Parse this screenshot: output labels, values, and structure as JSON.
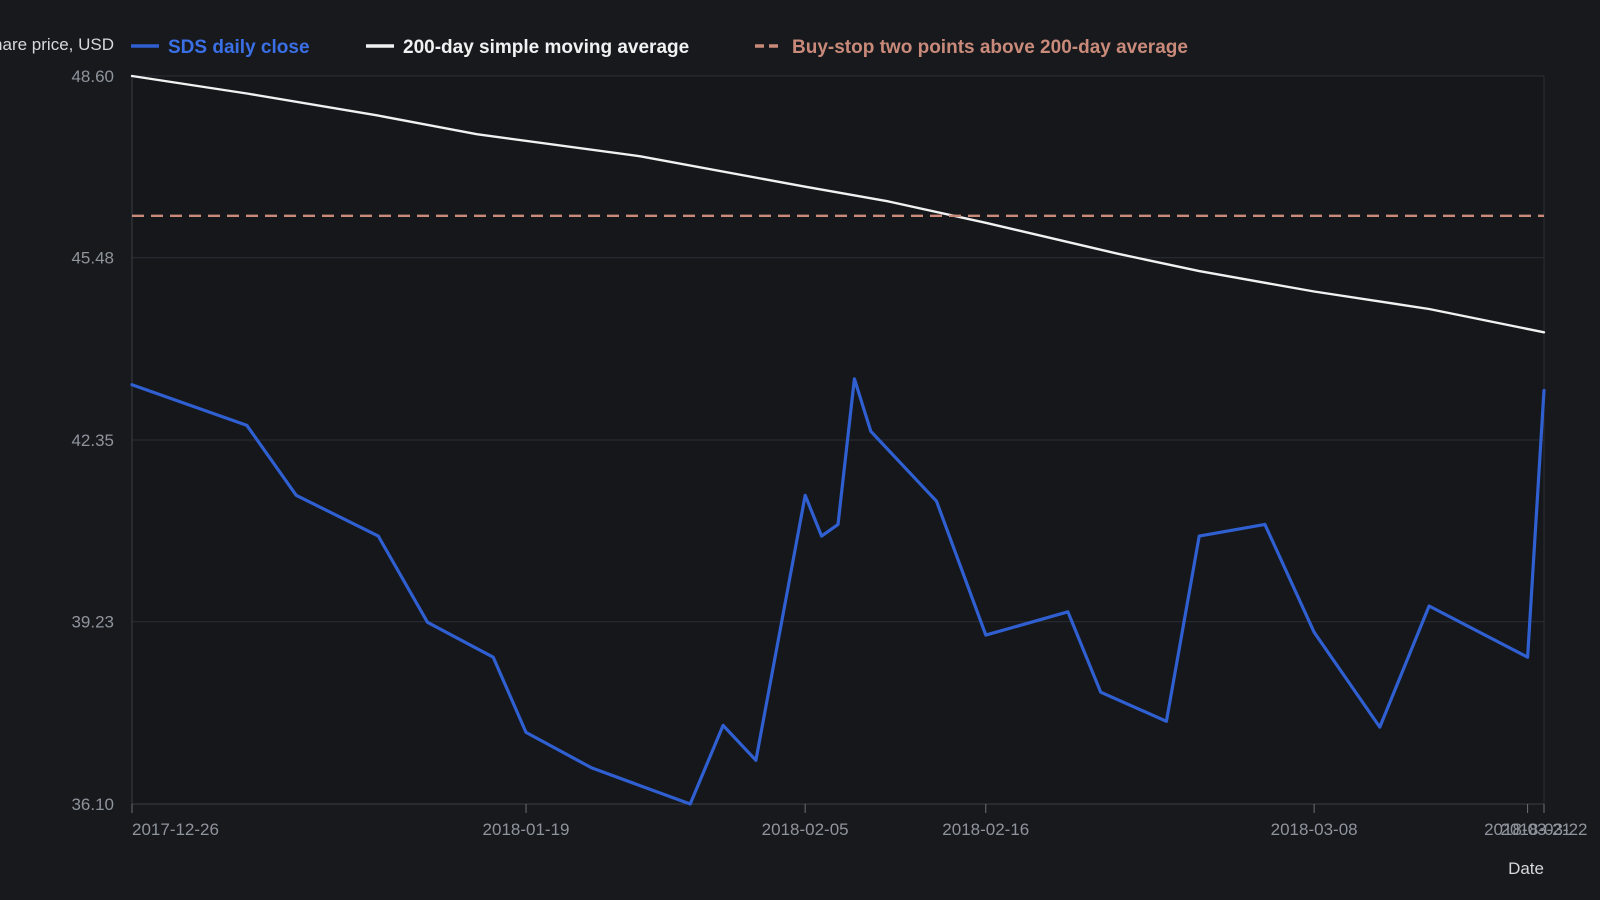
{
  "chart_data": {
    "type": "line",
    "ylabel": "Share price, USD",
    "xlabel": "Date",
    "ylim": [
      36.1,
      48.6
    ],
    "yticks": [
      "36.10",
      "39.23",
      "42.35",
      "45.48",
      "48.60"
    ],
    "xlim": [
      "2017-12-26",
      "2018-03-22"
    ],
    "xticks": [
      {
        "date": "2017-12-26",
        "label": "2017-12-26"
      },
      {
        "date": "2018-01-19",
        "label": "2018-01-19"
      },
      {
        "date": "2018-02-05",
        "label": "2018-02-05"
      },
      {
        "date": "2018-02-16",
        "label": "2018-02-16"
      },
      {
        "date": "2018-03-08",
        "label": "2018-03-08"
      },
      {
        "date": "2018-03-21",
        "label": "2018-03-21"
      },
      {
        "date": "2018-03-22",
        "label": "2018-03-22"
      }
    ],
    "grid": true,
    "legend_position": "top",
    "series": [
      {
        "name": "SDS daily close",
        "color": "#2f5fd0",
        "style": "solid",
        "x": [
          "2017-12-26",
          "2018-01-02",
          "2018-01-05",
          "2018-01-10",
          "2018-01-13",
          "2018-01-17",
          "2018-01-19",
          "2018-01-23",
          "2018-01-29",
          "2018-01-31",
          "2018-02-02",
          "2018-02-05",
          "2018-02-06",
          "2018-02-07",
          "2018-02-08",
          "2018-02-09",
          "2018-02-13",
          "2018-02-16",
          "2018-02-21",
          "2018-02-23",
          "2018-02-27",
          "2018-03-01",
          "2018-03-05",
          "2018-03-08",
          "2018-03-12",
          "2018-03-15",
          "2018-03-21",
          "2018-03-22"
        ],
        "values": [
          43.3,
          42.6,
          41.4,
          40.7,
          39.22,
          38.62,
          37.33,
          36.72,
          36.1,
          37.45,
          36.85,
          41.4,
          40.7,
          40.9,
          43.4,
          42.5,
          41.3,
          39.0,
          39.4,
          38.02,
          37.52,
          40.7,
          40.9,
          39.05,
          37.42,
          39.5,
          38.62,
          43.2
        ]
      },
      {
        "name": "200-day simple moving average",
        "color": "#f1f1f1",
        "style": "solid",
        "x": [
          "2017-12-26",
          "2018-01-02",
          "2018-01-10",
          "2018-01-16",
          "2018-01-26",
          "2018-02-05",
          "2018-02-10",
          "2018-02-16",
          "2018-02-24",
          "2018-03-01",
          "2018-03-08",
          "2018-03-15",
          "2018-03-22"
        ],
        "values": [
          48.6,
          48.3,
          47.92,
          47.6,
          47.22,
          46.7,
          46.45,
          46.08,
          45.55,
          45.25,
          44.9,
          44.6,
          44.2
        ]
      },
      {
        "name": "Buy-stop two points above 200-day average",
        "color": "#c98a7a",
        "style": "dashed",
        "x": [
          "2017-12-26",
          "2018-03-22"
        ],
        "values": [
          46.2,
          46.2
        ]
      }
    ]
  }
}
